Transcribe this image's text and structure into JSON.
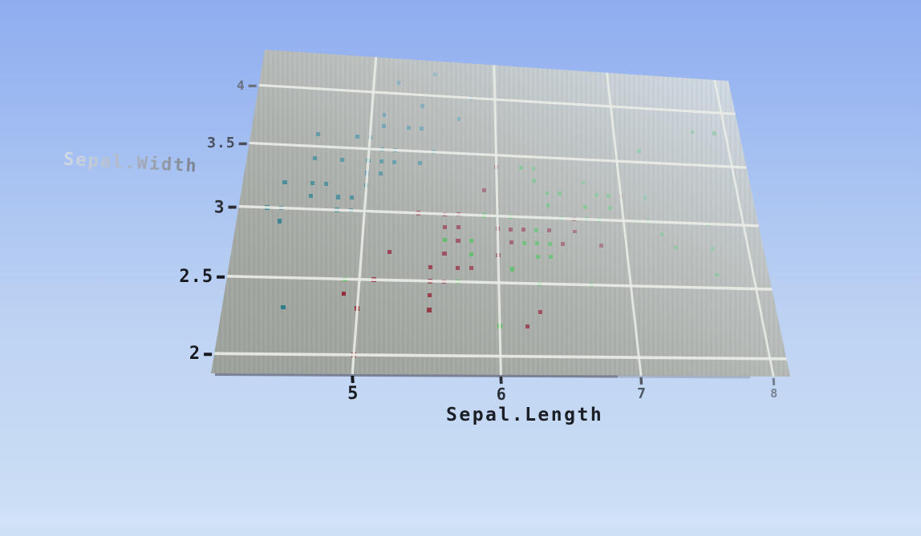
{
  "scene": {
    "description": "Voxel (Minecraft-style) 3D render of a scatter plot drawn on a tilted light-gray plane against a hazy blue sky",
    "colors": {
      "sky_top": "#8fadf0",
      "sky_bottom": "#cbdef5",
      "plane_near": "#969b95",
      "plane_far": "#dfe9f3",
      "grid_line": "#e9ece6",
      "tick_text_dark": "#17191e",
      "tick_text_faded": "#9aa6ba",
      "y_title_gray": "#9aa3b2",
      "x_title_dark": "#1b1e24",
      "bottom_edge_shadow": "#413e49",
      "haze": "#c6d4e4"
    }
  },
  "chart_data": {
    "type": "scatter",
    "title": "",
    "xlabel": "Sepal.Length",
    "ylabel": "Sepal.Width",
    "x_ticks": [
      5,
      6,
      7,
      8
    ],
    "x_tick_labels": [
      "5",
      "6",
      "7",
      "8"
    ],
    "y_ticks": [
      2,
      2.5,
      3,
      3.5,
      4
    ],
    "y_tick_labels": [
      "2",
      "2.5",
      "3",
      "3.5",
      "4"
    ],
    "xlim": [
      4.1,
      8.13
    ],
    "ylim": [
      1.88,
      4.33
    ],
    "grid": true,
    "legend": false,
    "series": [
      {
        "name": "teal",
        "color": "#2e7d8a",
        "points": [
          [
            5.1,
            3.5
          ],
          [
            4.9,
            3.0
          ],
          [
            4.7,
            3.2
          ],
          [
            4.6,
            3.1
          ],
          [
            5.0,
            3.6
          ],
          [
            5.4,
            3.9
          ],
          [
            4.6,
            3.4
          ],
          [
            5.0,
            3.4
          ],
          [
            4.4,
            2.9
          ],
          [
            4.9,
            3.1
          ],
          [
            5.4,
            3.7
          ],
          [
            4.8,
            3.4
          ],
          [
            4.8,
            3.0
          ],
          [
            4.3,
            3.0
          ],
          [
            5.8,
            4.0
          ],
          [
            5.7,
            4.4
          ],
          [
            5.4,
            3.9
          ],
          [
            5.1,
            3.5
          ],
          [
            5.7,
            3.8
          ],
          [
            5.1,
            3.8
          ],
          [
            5.4,
            3.4
          ],
          [
            5.1,
            3.7
          ],
          [
            4.6,
            3.6
          ],
          [
            5.1,
            3.3
          ],
          [
            4.8,
            3.4
          ],
          [
            5.0,
            3.0
          ],
          [
            5.0,
            3.4
          ],
          [
            5.2,
            3.5
          ],
          [
            5.2,
            3.4
          ],
          [
            4.7,
            3.2
          ],
          [
            4.8,
            3.1
          ],
          [
            5.4,
            3.4
          ],
          [
            5.2,
            4.1
          ],
          [
            5.5,
            4.2
          ],
          [
            4.9,
            3.1
          ],
          [
            5.0,
            3.2
          ],
          [
            5.5,
            3.5
          ],
          [
            4.9,
            3.6
          ],
          [
            4.4,
            3.0
          ],
          [
            5.1,
            3.4
          ],
          [
            5.0,
            3.5
          ],
          [
            4.5,
            2.3
          ],
          [
            4.4,
            3.2
          ],
          [
            5.0,
            3.5
          ],
          [
            5.1,
            3.8
          ],
          [
            4.8,
            3.0
          ],
          [
            5.1,
            3.8
          ],
          [
            4.6,
            3.2
          ],
          [
            5.3,
            3.7
          ],
          [
            5.0,
            3.3
          ]
        ]
      },
      {
        "name": "dark-red",
        "color": "#8e2431",
        "points": [
          [
            7.0,
            3.2
          ],
          [
            6.4,
            3.2
          ],
          [
            6.9,
            3.1
          ],
          [
            5.5,
            2.3
          ],
          [
            6.5,
            2.8
          ],
          [
            5.7,
            2.8
          ],
          [
            6.3,
            3.3
          ],
          [
            4.9,
            2.4
          ],
          [
            6.6,
            2.9
          ],
          [
            5.2,
            2.7
          ],
          [
            5.0,
            2.0
          ],
          [
            5.9,
            3.0
          ],
          [
            6.0,
            2.2
          ],
          [
            6.1,
            2.9
          ],
          [
            5.6,
            2.9
          ],
          [
            6.7,
            3.1
          ],
          [
            5.6,
            3.0
          ],
          [
            5.8,
            2.7
          ],
          [
            6.2,
            2.2
          ],
          [
            5.6,
            2.5
          ],
          [
            5.9,
            3.2
          ],
          [
            6.1,
            2.8
          ],
          [
            6.3,
            2.5
          ],
          [
            6.1,
            2.8
          ],
          [
            6.4,
            2.9
          ],
          [
            6.6,
            3.0
          ],
          [
            6.8,
            2.8
          ],
          [
            6.7,
            3.0
          ],
          [
            6.0,
            2.9
          ],
          [
            5.7,
            2.6
          ],
          [
            5.5,
            2.4
          ],
          [
            5.5,
            2.4
          ],
          [
            5.8,
            2.7
          ],
          [
            6.0,
            2.7
          ],
          [
            5.4,
            3.0
          ],
          [
            6.0,
            3.4
          ],
          [
            6.7,
            3.1
          ],
          [
            6.3,
            2.3
          ],
          [
            5.6,
            3.0
          ],
          [
            5.5,
            2.5
          ],
          [
            5.5,
            2.6
          ],
          [
            6.1,
            3.0
          ],
          [
            5.8,
            2.6
          ],
          [
            5.0,
            2.3
          ],
          [
            5.6,
            2.7
          ],
          [
            5.7,
            3.0
          ],
          [
            5.7,
            2.9
          ],
          [
            6.2,
            2.9
          ],
          [
            5.1,
            2.5
          ],
          [
            5.7,
            2.8
          ]
        ]
      },
      {
        "name": "green",
        "color": "#3cb53c",
        "points": [
          [
            6.3,
            3.3
          ],
          [
            5.8,
            2.7
          ],
          [
            7.1,
            3.0
          ],
          [
            6.3,
            2.9
          ],
          [
            6.5,
            3.0
          ],
          [
            7.6,
            3.0
          ],
          [
            4.9,
            2.5
          ],
          [
            7.3,
            2.9
          ],
          [
            6.7,
            2.5
          ],
          [
            7.2,
            3.6
          ],
          [
            6.5,
            3.2
          ],
          [
            6.4,
            2.7
          ],
          [
            6.8,
            3.0
          ],
          [
            5.7,
            2.5
          ],
          [
            5.8,
            2.8
          ],
          [
            6.4,
            3.2
          ],
          [
            6.5,
            3.0
          ],
          [
            7.7,
            3.8
          ],
          [
            7.7,
            2.6
          ],
          [
            6.0,
            2.2
          ],
          [
            6.9,
            3.2
          ],
          [
            5.6,
            2.8
          ],
          [
            7.7,
            2.8
          ],
          [
            6.3,
            2.7
          ],
          [
            6.7,
            3.3
          ],
          [
            7.2,
            3.2
          ],
          [
            6.2,
            2.8
          ],
          [
            6.1,
            3.0
          ],
          [
            6.4,
            2.8
          ],
          [
            7.2,
            3.0
          ],
          [
            7.4,
            2.8
          ],
          [
            7.9,
            3.8
          ],
          [
            6.4,
            2.8
          ],
          [
            6.3,
            2.8
          ],
          [
            6.1,
            2.6
          ],
          [
            7.7,
            3.0
          ],
          [
            6.3,
            3.4
          ],
          [
            6.4,
            3.1
          ],
          [
            6.0,
            3.0
          ],
          [
            6.9,
            3.1
          ],
          [
            6.7,
            3.1
          ],
          [
            6.9,
            3.1
          ],
          [
            5.8,
            2.7
          ],
          [
            6.8,
            3.2
          ],
          [
            6.7,
            3.3
          ],
          [
            6.7,
            3.0
          ],
          [
            6.3,
            2.5
          ],
          [
            6.5,
            3.0
          ],
          [
            6.2,
            3.4
          ],
          [
            5.9,
            3.0
          ]
        ]
      }
    ]
  }
}
